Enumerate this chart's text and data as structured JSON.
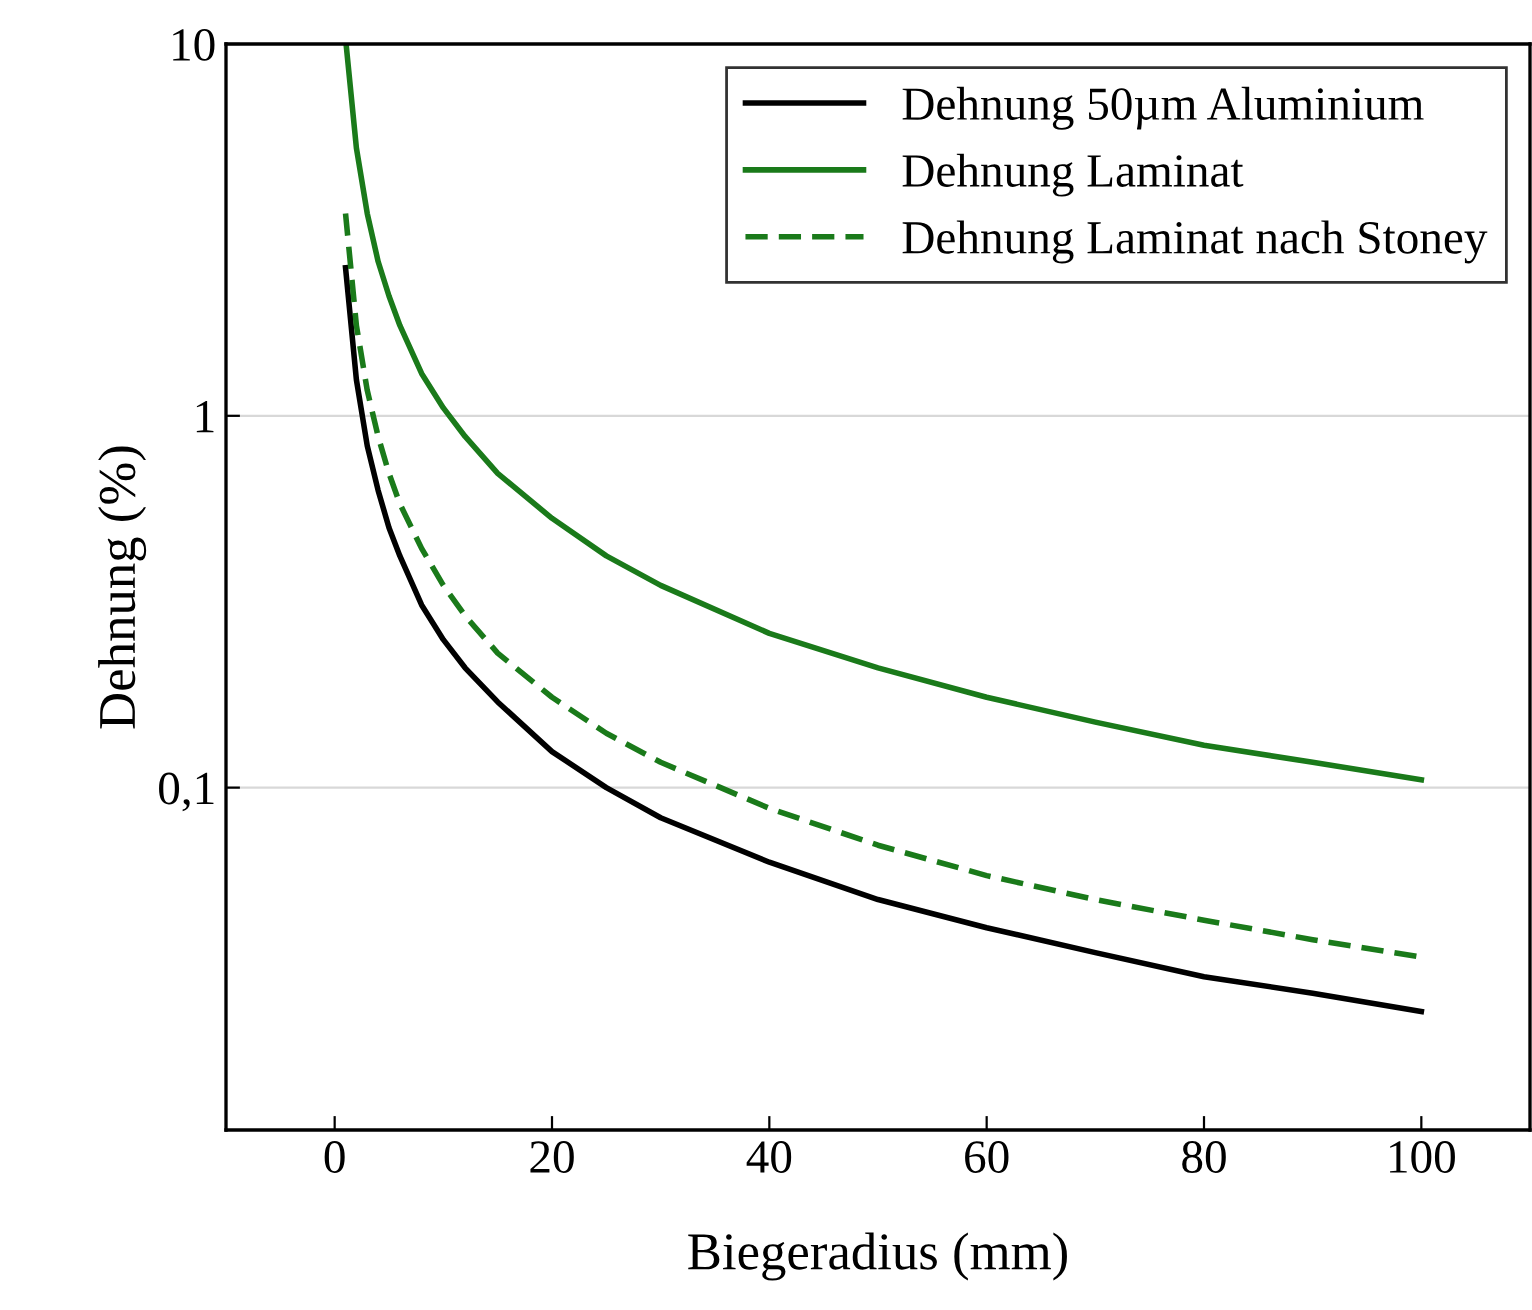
{
  "chart_data": {
    "type": "line",
    "xlabel": "Biegeradius (mm)",
    "ylabel": "Dehnung (%)",
    "xlim": [
      -10,
      110
    ],
    "xticks": [
      0,
      20,
      40,
      60,
      80,
      100
    ],
    "ylim": [
      0.012,
      10
    ],
    "yticks": [
      {
        "value": 0.1,
        "label": "0,1"
      },
      1,
      10
    ],
    "log": "y",
    "grid": "y",
    "legend": "top right",
    "marker": "none",
    "x": [
      1,
      2,
      3,
      4,
      5,
      6,
      8,
      10,
      12,
      15,
      20,
      25,
      30,
      40,
      50,
      60,
      70,
      80,
      90,
      100
    ],
    "series": [
      {
        "name": "Dehnung 50µm Aluminium",
        "color": "#000000",
        "line_style": "solid",
        "values": [
          2.5,
          1.25,
          0.83,
          0.63,
          0.5,
          0.42,
          0.31,
          0.25,
          0.21,
          0.17,
          0.125,
          0.1,
          0.083,
          0.063,
          0.05,
          0.042,
          0.036,
          0.031,
          0.028,
          0.025
        ]
      },
      {
        "name": "Dehnung Laminat",
        "color": "#1a7a1a",
        "line_style": "solid",
        "x": [
          1.05,
          2,
          3,
          4,
          5,
          6,
          8,
          10,
          12,
          15,
          20,
          25,
          30,
          40,
          50,
          60,
          70,
          80,
          90,
          100
        ],
        "values": [
          10,
          5.25,
          3.5,
          2.6,
          2.1,
          1.75,
          1.3,
          1.05,
          0.88,
          0.7,
          0.53,
          0.42,
          0.35,
          0.26,
          0.21,
          0.175,
          0.15,
          0.13,
          0.117,
          0.105
        ]
      },
      {
        "name": "Dehnung Laminat nach Stoney",
        "color": "#1a7a1a",
        "line_style": "dashed",
        "values": [
          3.5,
          1.75,
          1.17,
          0.88,
          0.7,
          0.58,
          0.44,
          0.35,
          0.29,
          0.23,
          0.175,
          0.14,
          0.117,
          0.088,
          0.07,
          0.058,
          0.05,
          0.044,
          0.039,
          0.035
        ]
      }
    ]
  }
}
